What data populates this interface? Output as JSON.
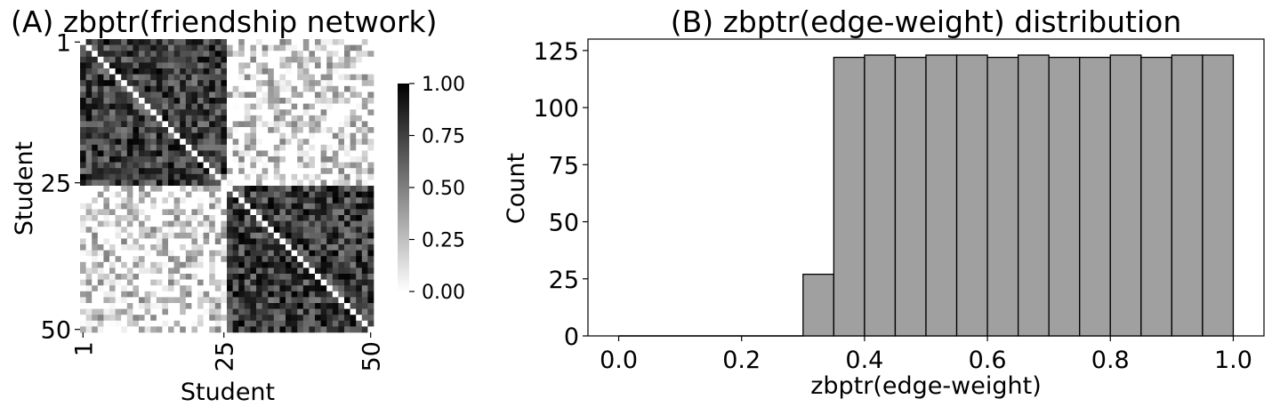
{
  "chart_data": [
    {
      "type": "heatmap",
      "title": "(A) zbptr(friendship network)",
      "xlabel": "Student",
      "ylabel": "Student",
      "n": 50,
      "x_ticks": [
        "1",
        "25",
        "50"
      ],
      "y_ticks": [
        "1",
        "25",
        "50"
      ],
      "within_group_range": [
        0.5,
        1.0
      ],
      "between_group_range": [
        0.0,
        0.5
      ],
      "groups": [
        [
          1,
          25
        ],
        [
          26,
          50
        ]
      ],
      "colorbar": {
        "min": 0.0,
        "max": 1.0,
        "ticks": [
          "0.00",
          "0.25",
          "0.50",
          "0.75",
          "1.00"
        ],
        "colormap": "white-to-black"
      }
    },
    {
      "type": "bar",
      "title": "(B) zbptr(edge-weight) distribution",
      "xlabel": "zbptr(edge-weight)",
      "ylabel": "Count",
      "bin_edges": [
        0.3,
        0.35,
        0.4,
        0.45,
        0.5,
        0.55,
        0.6,
        0.65,
        0.7,
        0.75,
        0.8,
        0.85,
        0.9,
        0.95,
        1.0
      ],
      "values": [
        27,
        122,
        123,
        122,
        123,
        123,
        122,
        123,
        122,
        122,
        123,
        122,
        123,
        123
      ],
      "xlim": [
        -0.05,
        1.05
      ],
      "ylim": [
        0,
        130
      ],
      "x_ticks": [
        "0.0",
        "0.2",
        "0.4",
        "0.6",
        "0.8",
        "1.0"
      ],
      "y_ticks": [
        "0",
        "25",
        "50",
        "75",
        "100",
        "125"
      ],
      "bar_color": "#a0a0a0",
      "edge_color": "#000000"
    }
  ]
}
